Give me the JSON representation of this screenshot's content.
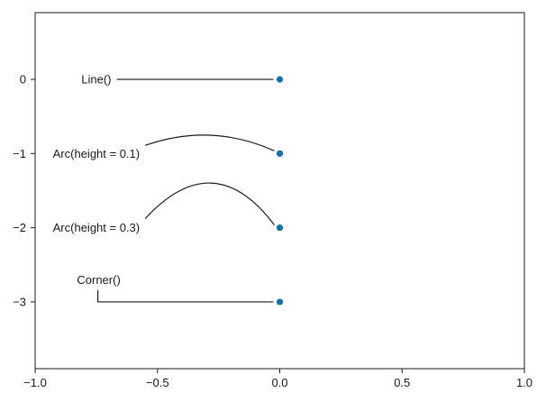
{
  "chart_data": {
    "type": "scatter",
    "title": "",
    "xlabel": "",
    "ylabel": "",
    "xlim": [
      -1.0,
      1.0
    ],
    "ylim": [
      -3.9,
      0.9
    ],
    "grid": false,
    "x_ticks": [
      -1.0,
      -0.5,
      0.0,
      0.5,
      1.0
    ],
    "x_tick_labels": [
      "−1.0",
      "−0.5",
      "0.0",
      "0.5",
      "1.0"
    ],
    "y_ticks": [
      0,
      -1,
      -2,
      -3
    ],
    "y_tick_labels": [
      "0",
      "−1",
      "−2",
      "−3"
    ],
    "points": [
      {
        "x": 0.0,
        "y": 0
      },
      {
        "x": 0.0,
        "y": -1
      },
      {
        "x": 0.0,
        "y": -2
      },
      {
        "x": 0.0,
        "y": -3
      }
    ],
    "point_color": "#0a72b1",
    "annotations": [
      {
        "text": "Line()",
        "text_x": -0.75,
        "text_y": 0,
        "target_x": 0.0,
        "target_y": 0,
        "path": "line"
      },
      {
        "text": "Arc(height = 0.1)",
        "text_x": -0.75,
        "text_y": -1,
        "target_x": 0.0,
        "target_y": -1,
        "path": "arc",
        "height": 0.1
      },
      {
        "text": "Arc(height = 0.3)",
        "text_x": -0.75,
        "text_y": -2,
        "target_x": 0.0,
        "target_y": -2,
        "path": "arc",
        "height": 0.3
      },
      {
        "text": "Corner()",
        "text_x": -0.74,
        "text_y": -2.7,
        "target_x": 0.0,
        "target_y": -3,
        "path": "corner"
      }
    ]
  }
}
